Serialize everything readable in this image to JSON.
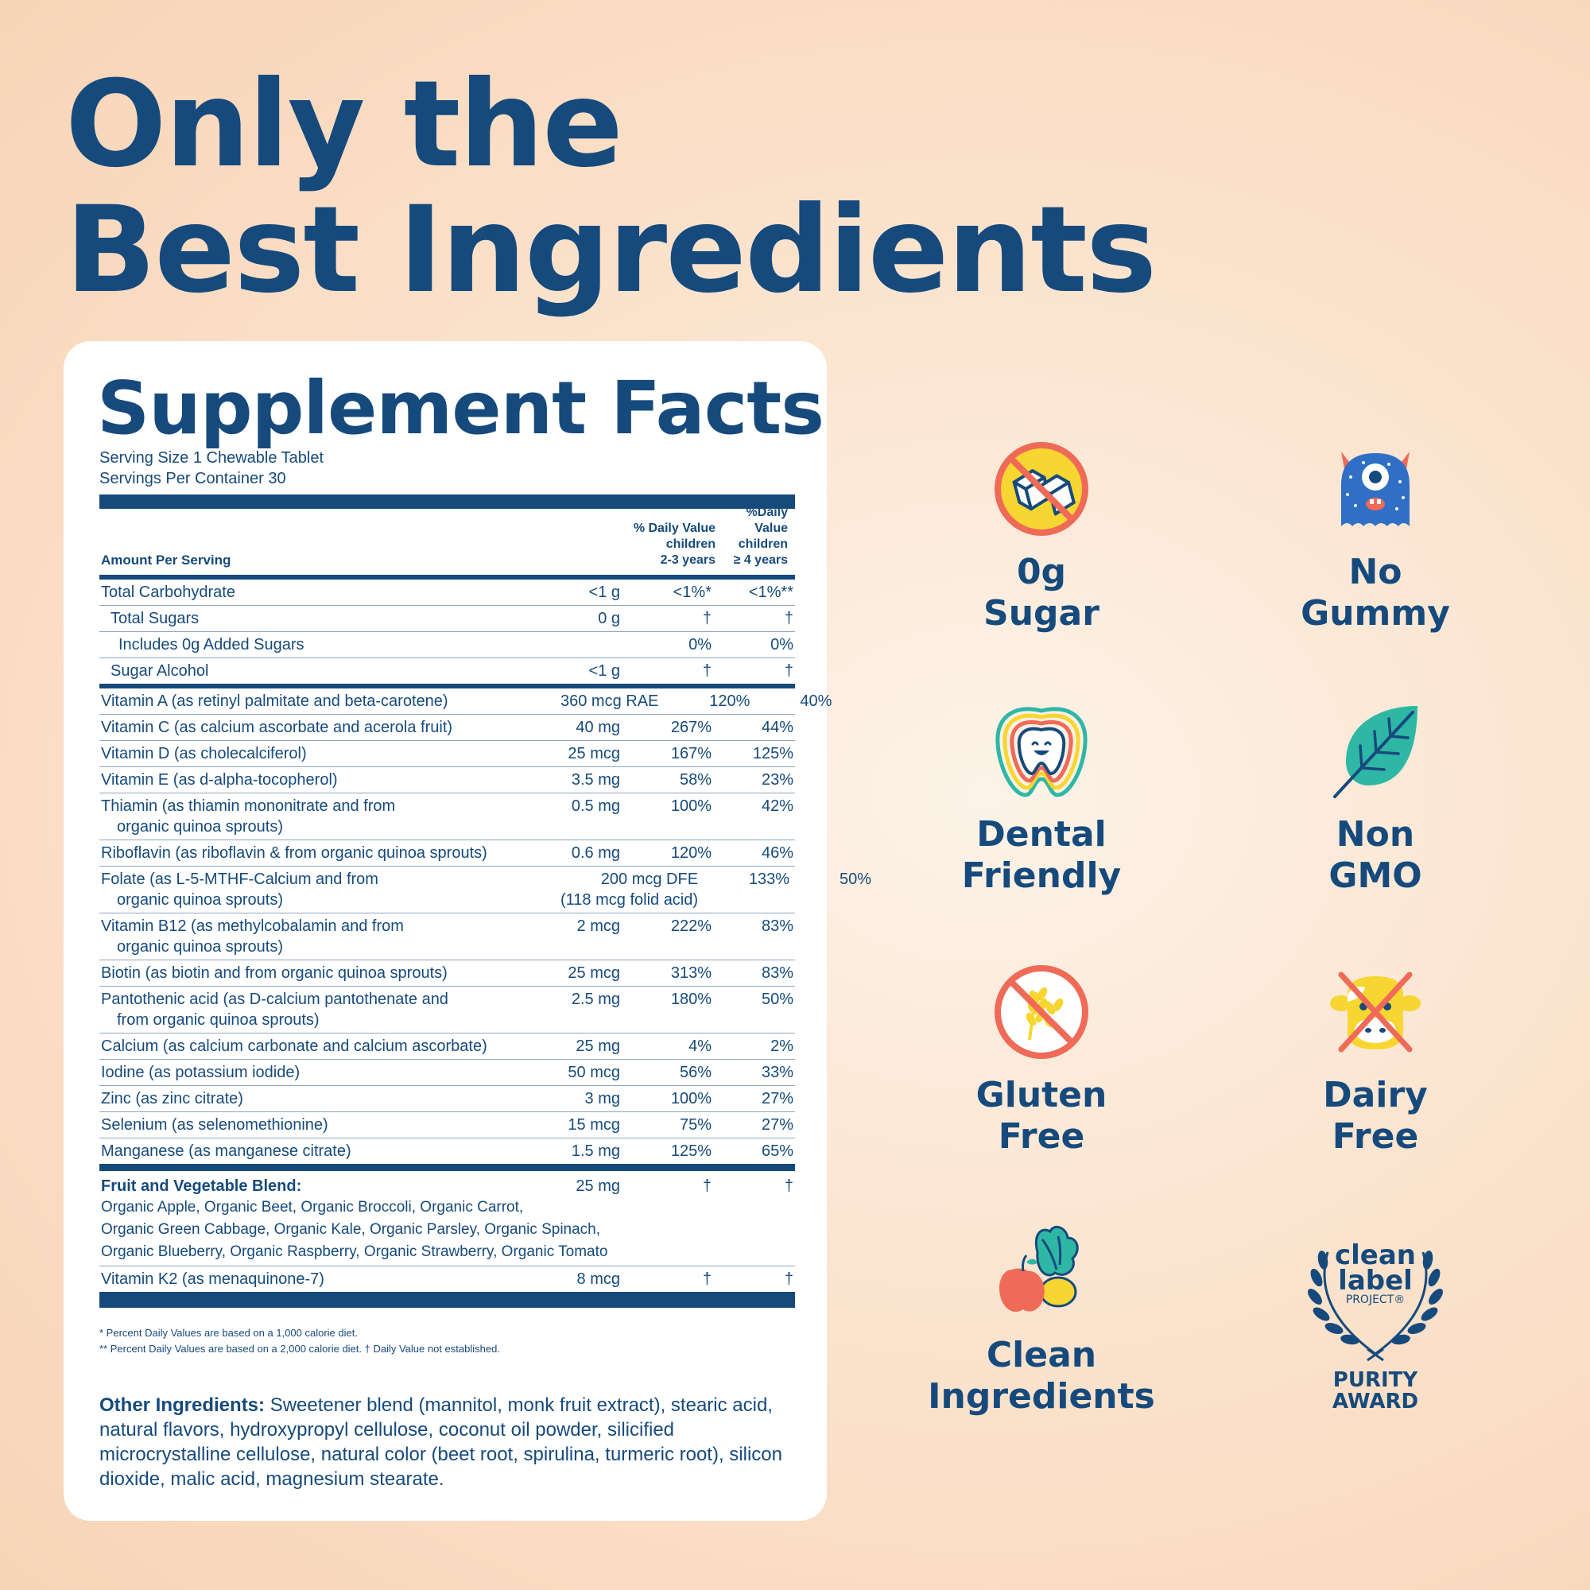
{
  "headline": {
    "line1": "Only the",
    "line2": "Best Ingredients"
  },
  "facts": {
    "title": "Supplement Facts",
    "serving_size": "Serving Size 1 Chewable Tablet",
    "servings_per_container": "Servings Per Container 30",
    "header": {
      "amount_per_serving": "Amount Per Serving",
      "col1": [
        "% Daily Value",
        "children",
        "2-3 years"
      ],
      "col2": [
        "%Daily Value",
        "children",
        "≥ 4 years"
      ]
    },
    "carb_rows": [
      {
        "name": "Total Carbohydrate",
        "amount": "<1 g",
        "dv1": "<1%*",
        "dv2": "<1%**"
      },
      {
        "name": "Total Sugars",
        "amount": "0 g",
        "dv1": "†",
        "dv2": "†"
      },
      {
        "name": "Includes 0g Added Sugars",
        "amount": "",
        "dv1": "0%",
        "dv2": "0%"
      },
      {
        "name": "Sugar Alcohol",
        "amount": "<1 g",
        "dv1": "†",
        "dv2": "†"
      }
    ],
    "vitamin_rows": [
      {
        "name": "Vitamin A (as retinyl palmitate and beta-carotene)",
        "amount": "360 mcg RAE",
        "dv1": "120%",
        "dv2": "40%"
      },
      {
        "name": "Vitamin C (as calcium ascorbate and acerola fruit)",
        "amount": "40 mg",
        "dv1": "267%",
        "dv2": "44%"
      },
      {
        "name": "Vitamin D (as cholecalciferol)",
        "amount": "25 mcg",
        "dv1": "167%",
        "dv2": "125%"
      },
      {
        "name": "Vitamin E (as d-alpha-tocopherol)",
        "amount": "3.5 mg",
        "dv1": "58%",
        "dv2": "23%"
      },
      {
        "name": "Thiamin (as thiamin mononitrate and from",
        "cont": "organic quinoa sprouts)",
        "amount": "0.5 mg",
        "dv1": "100%",
        "dv2": "42%"
      },
      {
        "name": "Riboflavin (as riboflavin & from organic quinoa sprouts)",
        "amount": "0.6 mg",
        "dv1": "120%",
        "dv2": "46%"
      },
      {
        "name": "Folate (as L-5-MTHF-Calcium and from",
        "cont": "organic quinoa sprouts)",
        "amount": "200 mcg DFE",
        "amount2": "(118 mcg folid acid)",
        "dv1": "133%",
        "dv2": "50%"
      },
      {
        "name": "Vitamin B12 (as methylcobalamin and from",
        "cont": "organic quinoa sprouts)",
        "amount": "2 mcg",
        "dv1": "222%",
        "dv2": "83%"
      },
      {
        "name": "Biotin (as biotin and from organic quinoa sprouts)",
        "amount": "25 mcg",
        "dv1": "313%",
        "dv2": "83%"
      },
      {
        "name": "Pantothenic acid (as D-calcium pantothenate and",
        "cont": "from organic quinoa sprouts)",
        "amount": "2.5 mg",
        "dv1": "180%",
        "dv2": "50%"
      },
      {
        "name": "Calcium (as calcium carbonate and calcium ascorbate)",
        "amount": "25 mg",
        "dv1": "4%",
        "dv2": "2%"
      },
      {
        "name": "Iodine (as potassium iodide)",
        "amount": "50 mcg",
        "dv1": "56%",
        "dv2": "33%"
      },
      {
        "name": "Zinc (as zinc citrate)",
        "amount": "3 mg",
        "dv1": "100%",
        "dv2": "27%"
      },
      {
        "name": "Selenium (as selenomethionine)",
        "amount": "15 mcg",
        "dv1": "75%",
        "dv2": "27%"
      },
      {
        "name": "Manganese (as manganese citrate)",
        "amount": "1.5 mg",
        "dv1": "125%",
        "dv2": "65%"
      }
    ],
    "blend": {
      "name": "Fruit and Vegetable Blend:",
      "list": [
        "Organic Apple, Organic Beet, Organic Broccoli, Organic Carrot,",
        "Organic Green Cabbage, Organic Kale, Organic Parsley, Organic Spinach,",
        "Organic Blueberry, Organic Raspberry, Organic Strawberry, Organic Tomato"
      ],
      "amount": "25 mg",
      "dv1": "†",
      "dv2": "†"
    },
    "k2": {
      "name": "Vitamin K2 (as menaquinone-7)",
      "amount": "8 mcg",
      "dv1": "†",
      "dv2": "†"
    },
    "footnote1": "* Percent Daily Values are based on a 1,000 calorie diet.",
    "footnote2": "** Percent Daily Values are based on a 2,000 calorie diet.  † Daily Value not established.",
    "other_label": "Other Ingredients:",
    "other_text": " Sweetener blend (mannitol, monk fruit extract), stearic acid, natural flavors, hydroxypropyl cellulose, coconut oil powder, silicified microcrystalline cellulose, natural color (beet root, spirulina, turmeric root), silicon dioxide, malic acid, magnesium stearate."
  },
  "badges": {
    "sugar": [
      "0g",
      "Sugar"
    ],
    "gummy": [
      "No",
      "Gummy"
    ],
    "dental": [
      "Dental",
      "Friendly"
    ],
    "gmo": [
      "Non",
      "GMO"
    ],
    "gluten": [
      "Gluten",
      "Free"
    ],
    "dairy": [
      "Dairy",
      "Free"
    ],
    "clean": [
      "Clean",
      "Ingredients"
    ],
    "award": {
      "line1": "clean",
      "line2": "label",
      "line3": "PROJECT®",
      "line4": "PURITY",
      "line5": "AWARD"
    }
  },
  "colors": {
    "navy": "#164a7c",
    "coral": "#ef6a57",
    "yellow": "#f7d631",
    "teal": "#2fb7a6",
    "blue": "#2f6fc6"
  },
  "icons": [
    "no-sugar-icon",
    "monster-icon",
    "tooth-icon",
    "leaf-icon",
    "no-wheat-icon",
    "no-cow-icon",
    "produce-icon",
    "laurel-award-icon"
  ]
}
